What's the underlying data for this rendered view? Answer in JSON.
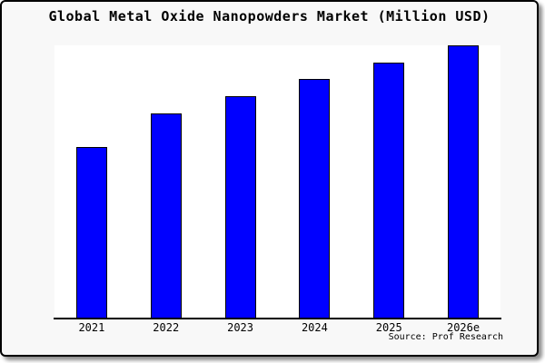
{
  "frame": {
    "page_background": "#ffffff",
    "box_background": "#f8f8f8",
    "box_border_color": "#000000"
  },
  "chart_data": {
    "type": "bar",
    "title": "Global Metal Oxide Nanopowders Market (Million USD)",
    "categories": [
      "2021",
      "2022",
      "2023",
      "2024",
      "2025",
      "2026e"
    ],
    "values_pct_of_plot_height": [
      62.7,
      75.0,
      81.3,
      87.7,
      93.7,
      100.0
    ],
    "value_axis_note": "no y-axis or numeric value labels shown; bar heights are relative to tallest bar (2026e = 100)",
    "xlabel": "",
    "ylabel": "",
    "grid": false,
    "legend": false,
    "bar_color": "#0000ff",
    "bar_border_color": "#000000",
    "plot_background": "#ffffff",
    "source": "Source: Prof Research"
  }
}
